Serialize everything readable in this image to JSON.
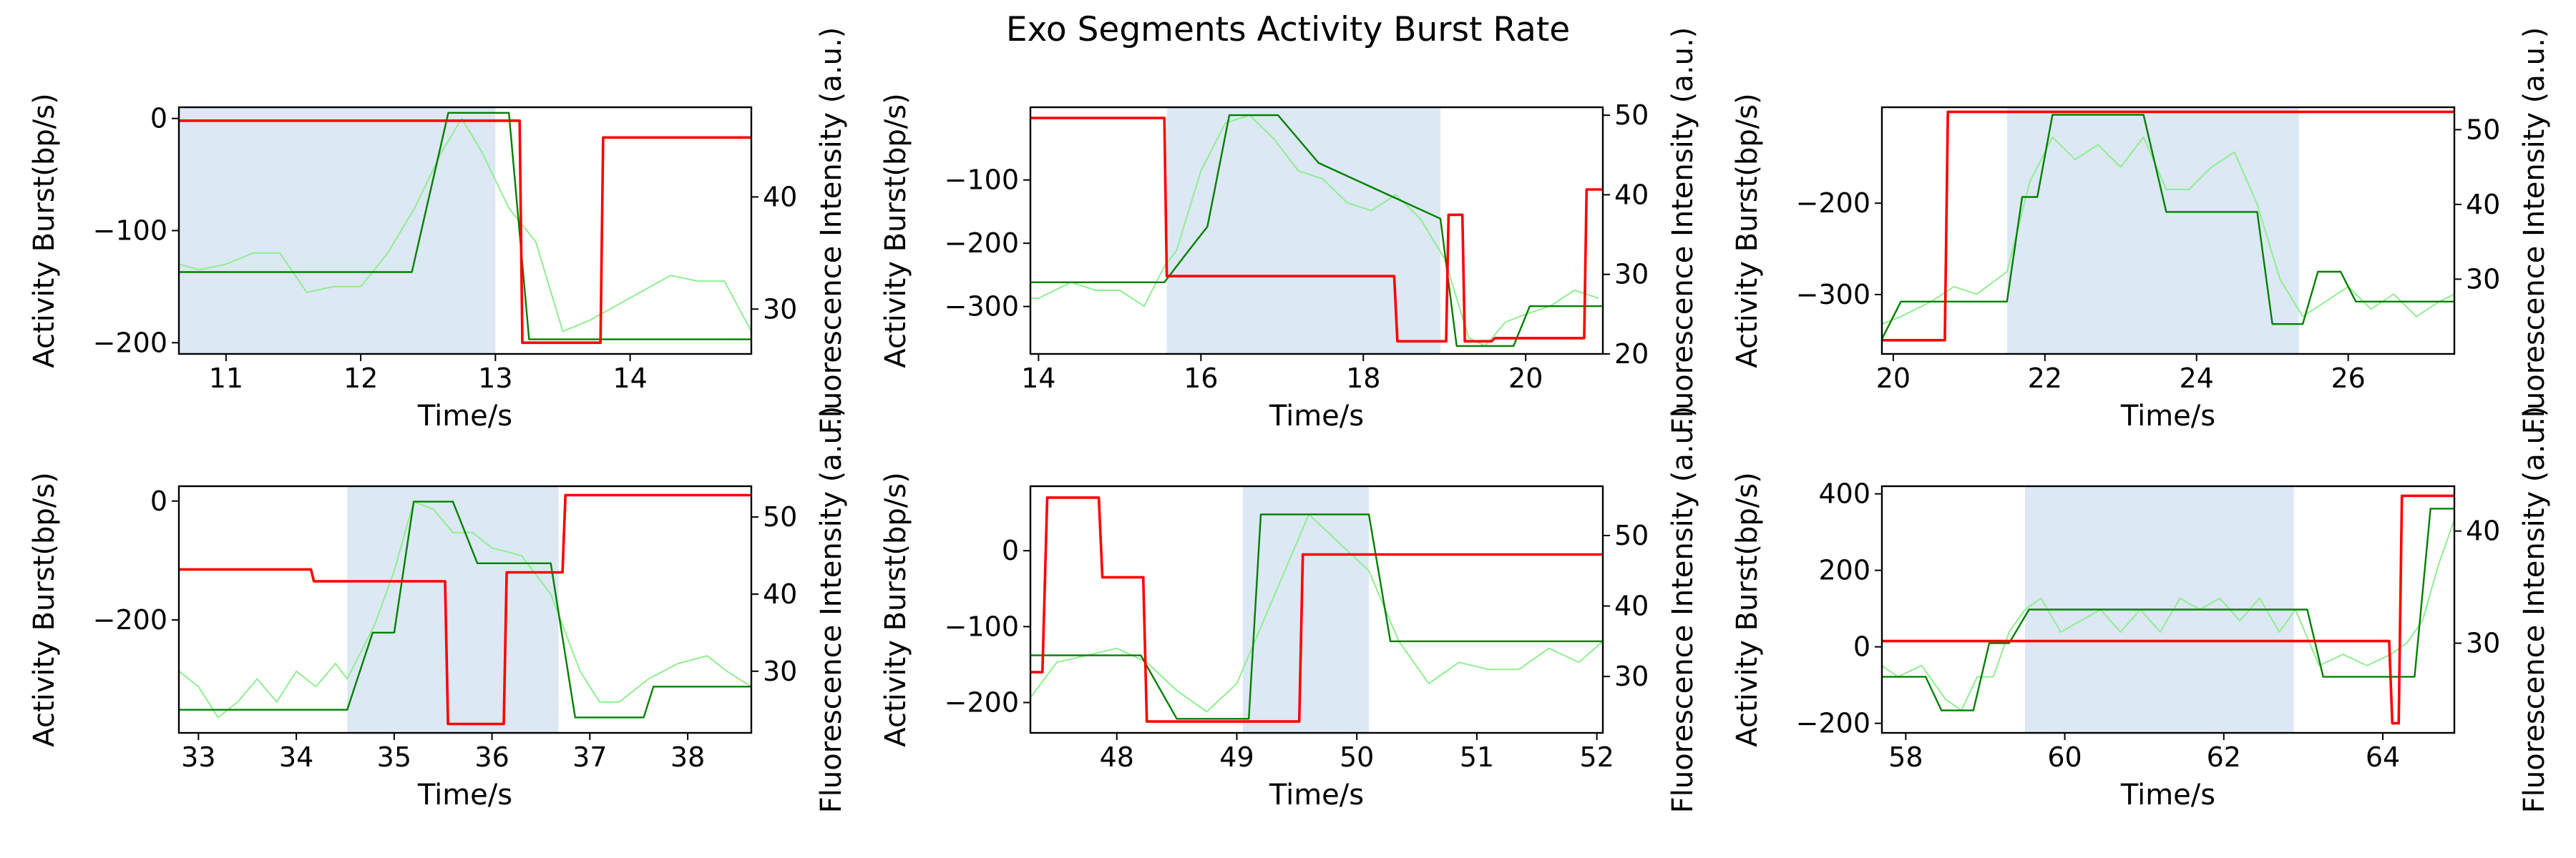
{
  "figure": {
    "title": "Exo Segments Activity Burst Rate"
  },
  "colors": {
    "activity": "#ff0000",
    "fluor_raw": "#90ee90",
    "fluor_step": "#008000",
    "highlight": "#dce8f4"
  },
  "chart_data": [
    {
      "type": "line",
      "xlabel": "Time/s",
      "ylabel": "Activity Burst(bp/s)",
      "y2label": "Fluorescence Intensity (a.u.)",
      "xlim": [
        10.65,
        14.9
      ],
      "ylim": [
        -210,
        10
      ],
      "y2lim": [
        26,
        48
      ],
      "xticks": [
        11,
        12,
        13,
        14
      ],
      "yticks": [
        -200,
        -100,
        0
      ],
      "y2ticks": [
        30,
        40
      ],
      "highlight": [
        10.65,
        13.0
      ],
      "activity": {
        "x": [
          10.65,
          13.18,
          13.2,
          13.58,
          13.78,
          13.8,
          14.9
        ],
        "y": [
          -2,
          -2,
          -200,
          -200,
          -200,
          -17,
          -17
        ]
      },
      "fluor_raw": {
        "x": [
          10.65,
          10.8,
          11.0,
          11.2,
          11.4,
          11.6,
          11.8,
          12.0,
          12.2,
          12.4,
          12.6,
          12.75,
          12.9,
          13.1,
          13.3,
          13.5,
          13.7,
          14.0,
          14.3,
          14.5,
          14.7,
          14.9
        ],
        "y": [
          34,
          33.5,
          34,
          35,
          35,
          31.5,
          32,
          32,
          35,
          39,
          44,
          47,
          44,
          39,
          36,
          28,
          29,
          31,
          33,
          32.5,
          32.5,
          28
        ]
      },
      "fluor_step": {
        "x": [
          10.65,
          12.38,
          12.65,
          13.1,
          13.25,
          14.9
        ],
        "y": [
          33.3,
          33.3,
          47.5,
          47.5,
          27.3,
          27.3
        ]
      }
    },
    {
      "type": "line",
      "xlabel": "Time/s",
      "ylabel": "Activity Burst(bp/s)",
      "y2label": "Fluorescence Intensity (a.u.)",
      "xlim": [
        13.9,
        20.95
      ],
      "ylim": [
        -375,
        15
      ],
      "y2lim": [
        20,
        51
      ],
      "xticks": [
        14,
        16,
        18,
        20
      ],
      "yticks": [
        -300,
        -200,
        -100
      ],
      "y2ticks": [
        20,
        30,
        40,
        50
      ],
      "highlight": [
        15.58,
        18.95
      ],
      "activity": {
        "x": [
          13.9,
          15.55,
          15.58,
          18.38,
          18.42,
          19.02,
          19.05,
          19.22,
          19.25,
          19.58,
          19.62,
          20.22,
          20.25,
          20.72,
          20.75,
          20.95
        ],
        "y": [
          -2,
          -2,
          -252,
          -252,
          -355,
          -355,
          -155,
          -155,
          -355,
          -355,
          -350,
          -350,
          -350,
          -350,
          -115,
          -115
        ]
      },
      "fluor_raw": {
        "x": [
          13.9,
          14.0,
          14.4,
          14.7,
          15.0,
          15.3,
          15.55,
          15.7,
          16.0,
          16.3,
          16.6,
          16.9,
          17.2,
          17.5,
          17.8,
          18.1,
          18.4,
          18.7,
          19.0,
          19.3,
          19.5,
          19.75,
          20.0,
          20.3,
          20.6,
          20.9
        ],
        "y": [
          27,
          27,
          29,
          28,
          28,
          26,
          31,
          33,
          43,
          49,
          50,
          47,
          43,
          42,
          39,
          38,
          40,
          37,
          32,
          22,
          21,
          24,
          25,
          26,
          28,
          27
        ]
      },
      "fluor_step": {
        "x": [
          13.9,
          15.55,
          15.85,
          16.08,
          16.35,
          16.95,
          17.45,
          18.95,
          19.15,
          19.85,
          20.05,
          20.95
        ],
        "y": [
          29,
          29,
          33,
          36,
          50,
          50,
          44,
          37,
          21,
          21,
          26,
          26
        ]
      }
    },
    {
      "type": "line",
      "xlabel": "Time/s",
      "ylabel": "Activity Burst(bp/s)",
      "y2label": "Fluorescence Intensity (a.u.)",
      "xlim": [
        19.85,
        27.4
      ],
      "ylim": [
        -365,
        -95
      ],
      "y2lim": [
        20,
        53
      ],
      "xticks": [
        20,
        22,
        24,
        26
      ],
      "yticks": [
        -300,
        -200
      ],
      "y2ticks": [
        30,
        40,
        50
      ],
      "highlight": [
        21.5,
        25.35
      ],
      "activity": {
        "x": [
          19.85,
          20.68,
          20.72,
          27.4
        ],
        "y": [
          -350,
          -350,
          -100,
          -100
        ]
      },
      "fluor_raw": {
        "x": [
          19.85,
          20.1,
          20.5,
          20.8,
          21.1,
          21.5,
          21.8,
          22.1,
          22.4,
          22.7,
          23.0,
          23.3,
          23.6,
          23.9,
          24.2,
          24.5,
          24.8,
          25.1,
          25.4,
          25.7,
          26.0,
          26.3,
          26.6,
          26.9,
          27.2,
          27.4
        ],
        "y": [
          24,
          25,
          27,
          29,
          28,
          31,
          43,
          49,
          46,
          48,
          45,
          49,
          42,
          42,
          45,
          47,
          40,
          30,
          25,
          27,
          29,
          26,
          28,
          25,
          27,
          28
        ]
      },
      "fluor_step": {
        "x": [
          19.85,
          20.1,
          21.0,
          21.5,
          21.7,
          21.9,
          22.1,
          23.3,
          23.6,
          24.8,
          25.0,
          25.4,
          25.6,
          25.9,
          26.1,
          27.4
        ],
        "y": [
          22,
          27,
          27,
          27,
          41,
          41,
          52,
          52,
          39,
          39,
          24,
          24,
          31,
          31,
          27,
          27
        ]
      }
    },
    {
      "type": "line",
      "xlabel": "Time/s",
      "ylabel": "Activity Burst(bp/s)",
      "y2label": "Fluorescence Intensity (a.u.)",
      "xlim": [
        32.8,
        38.65
      ],
      "ylim": [
        -390,
        25
      ],
      "y2lim": [
        22,
        54
      ],
      "xticks": [
        33,
        34,
        35,
        36,
        37,
        38
      ],
      "yticks": [
        -200,
        0
      ],
      "y2ticks": [
        30,
        40,
        50
      ],
      "highlight": [
        34.52,
        36.68
      ],
      "activity": {
        "x": [
          32.8,
          34.15,
          34.18,
          35.52,
          35.55,
          36.12,
          36.15,
          36.72,
          36.75,
          38.65
        ],
        "y": [
          -115,
          -115,
          -135,
          -135,
          -375,
          -375,
          -120,
          -120,
          10,
          10
        ]
      },
      "fluor_raw": {
        "x": [
          32.8,
          33.0,
          33.2,
          33.4,
          33.6,
          33.8,
          34.0,
          34.2,
          34.4,
          34.52,
          34.8,
          35.0,
          35.2,
          35.4,
          35.6,
          35.8,
          36.0,
          36.3,
          36.6,
          36.9,
          37.1,
          37.3,
          37.6,
          37.9,
          38.2,
          38.4,
          38.65
        ],
        "y": [
          30,
          28,
          24,
          26,
          29,
          26,
          30,
          28,
          31,
          29,
          36,
          43,
          52,
          51,
          48,
          48,
          46,
          45,
          40,
          30,
          26,
          26,
          29,
          31,
          32,
          30,
          28
        ]
      },
      "fluor_step": {
        "x": [
          32.8,
          34.52,
          34.78,
          35.0,
          35.2,
          35.6,
          35.85,
          36.6,
          36.85,
          37.55,
          37.65,
          38.65
        ],
        "y": [
          25,
          25,
          35,
          35,
          52,
          52,
          44,
          44,
          24,
          24,
          28,
          28
        ]
      }
    },
    {
      "type": "line",
      "xlabel": "Time/s",
      "ylabel": "Activity Burst(bp/s)",
      "y2label": "Fluorescence Intensity (a.u.)",
      "xlim": [
        47.28,
        52.05
      ],
      "ylim": [
        -240,
        85
      ],
      "y2lim": [
        22,
        57
      ],
      "xticks": [
        48,
        49,
        50,
        51,
        52
      ],
      "yticks": [
        -200,
        -100,
        0
      ],
      "y2ticks": [
        30,
        40,
        50
      ],
      "highlight": [
        49.05,
        50.1
      ],
      "activity": {
        "x": [
          47.28,
          47.38,
          47.42,
          47.85,
          47.88,
          48.12,
          48.15,
          48.22,
          48.25,
          49.52,
          49.55,
          52.05
        ],
        "y": [
          -160,
          -160,
          70,
          70,
          -35,
          -35,
          -35,
          -35,
          -225,
          -225,
          -5,
          -5
        ]
      },
      "fluor_raw": {
        "x": [
          47.28,
          47.5,
          47.75,
          48.0,
          48.25,
          48.5,
          48.75,
          49.0,
          49.3,
          49.6,
          49.85,
          50.1,
          50.35,
          50.6,
          50.85,
          51.1,
          51.35,
          51.6,
          51.85,
          52.05
        ],
        "y": [
          27,
          32,
          33,
          34,
          32,
          28,
          25,
          29,
          41,
          53,
          49,
          45,
          35,
          29,
          32,
          31,
          31,
          34,
          32,
          35
        ]
      },
      "fluor_step": {
        "x": [
          47.28,
          48.2,
          48.5,
          49.1,
          49.2,
          50.1,
          50.28,
          52.05
        ],
        "y": [
          33,
          33,
          24,
          24,
          53,
          53,
          35,
          35
        ]
      }
    },
    {
      "type": "line",
      "xlabel": "Time/s",
      "ylabel": "Activity Burst(bp/s)",
      "y2label": "Fluorescence Intensity (a.u.)",
      "xlim": [
        57.7,
        64.9
      ],
      "ylim": [
        -225,
        420
      ],
      "y2lim": [
        22,
        44
      ],
      "xticks": [
        58,
        60,
        62,
        64
      ],
      "yticks": [
        -200,
        0,
        200,
        400
      ],
      "y2ticks": [
        30,
        40
      ],
      "highlight": [
        59.5,
        62.88
      ],
      "activity": {
        "x": [
          57.7,
          64.08,
          64.12,
          64.2,
          64.24,
          64.9
        ],
        "y": [
          15,
          15,
          -200,
          -200,
          395,
          395
        ]
      },
      "fluor_raw": {
        "x": [
          57.7,
          57.9,
          58.2,
          58.5,
          58.7,
          58.9,
          59.1,
          59.3,
          59.5,
          59.7,
          59.95,
          60.2,
          60.45,
          60.7,
          60.95,
          61.2,
          61.45,
          61.7,
          61.95,
          62.2,
          62.45,
          62.7,
          62.9,
          63.2,
          63.5,
          63.8,
          64.1,
          64.3,
          64.5,
          64.7,
          64.9
        ],
        "y": [
          28,
          27,
          28,
          25,
          24,
          27,
          27,
          31,
          33,
          34,
          31,
          32,
          33,
          31,
          33,
          31,
          34,
          33,
          34,
          32,
          34,
          31,
          33,
          28,
          29,
          28,
          29,
          30,
          32,
          37,
          41
        ]
      },
      "fluor_step": {
        "x": [
          57.7,
          58.25,
          58.45,
          58.85,
          59.05,
          59.3,
          59.55,
          63.05,
          63.25,
          64.4,
          64.6,
          64.9
        ],
        "y": [
          27,
          27,
          24,
          24,
          30,
          30,
          33,
          33,
          27,
          27,
          42,
          42
        ]
      }
    }
  ]
}
